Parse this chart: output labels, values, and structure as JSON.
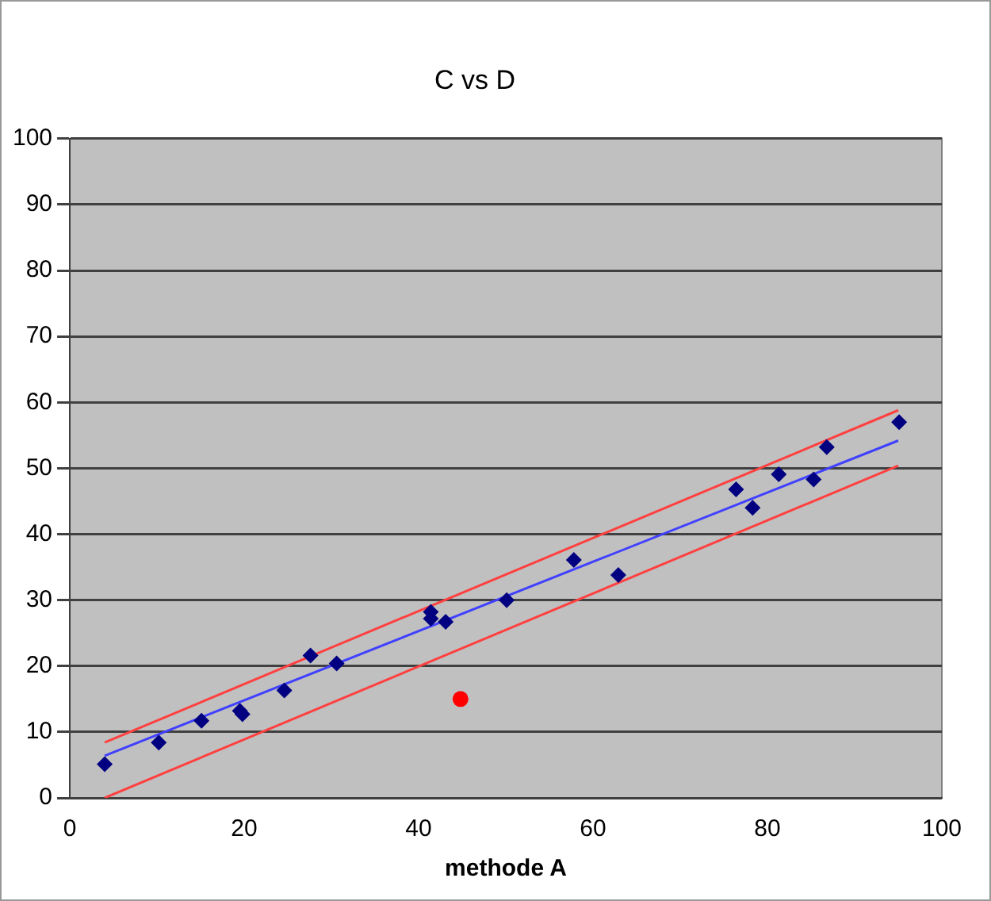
{
  "chart_data": {
    "type": "scatter",
    "title": "C vs D",
    "xlabel": "methode A",
    "xlim": [
      0,
      100
    ],
    "xticks": [
      0,
      20,
      40,
      60,
      80,
      100
    ],
    "ylim": [
      0,
      100
    ],
    "yticks": [
      0,
      10,
      20,
      30,
      40,
      50,
      60,
      70,
      80,
      90,
      100
    ],
    "grid": "y",
    "legend": false,
    "series": [
      {
        "marker": "diamond",
        "color": "#000080",
        "x": [
          4.0,
          10.2,
          15.1,
          19.5,
          19.8,
          24.6,
          27.6,
          30.6,
          41.4,
          41.4,
          43.1,
          50.1,
          57.8,
          62.9,
          76.4,
          78.3,
          81.3,
          85.3,
          86.8,
          95.1
        ],
        "values": [
          5.1,
          8.4,
          11.7,
          13.2,
          12.7,
          16.3,
          21.6,
          20.4,
          28.2,
          27.2,
          26.7,
          30.0,
          36.1,
          33.8,
          46.8,
          44.0,
          49.1,
          48.3,
          53.2,
          57.0
        ]
      },
      {
        "marker": "circle",
        "color": "#ff0000",
        "x": [
          44.8
        ],
        "values": [
          15.0
        ]
      },
      {
        "type": "line",
        "marker": "none",
        "line_style": "solid",
        "color": "#4040ff",
        "x": [
          4,
          95
        ],
        "values": [
          6.4,
          54.2
        ]
      },
      {
        "type": "line",
        "marker": "none",
        "line_style": "solid",
        "color": "#ff4040",
        "x": [
          4,
          95
        ],
        "values": [
          8.4,
          58.8
        ]
      },
      {
        "type": "line",
        "marker": "none",
        "line_style": "solid",
        "color": "#ff4040",
        "x": [
          4,
          95
        ],
        "values": [
          0,
          50.4
        ]
      }
    ]
  }
}
